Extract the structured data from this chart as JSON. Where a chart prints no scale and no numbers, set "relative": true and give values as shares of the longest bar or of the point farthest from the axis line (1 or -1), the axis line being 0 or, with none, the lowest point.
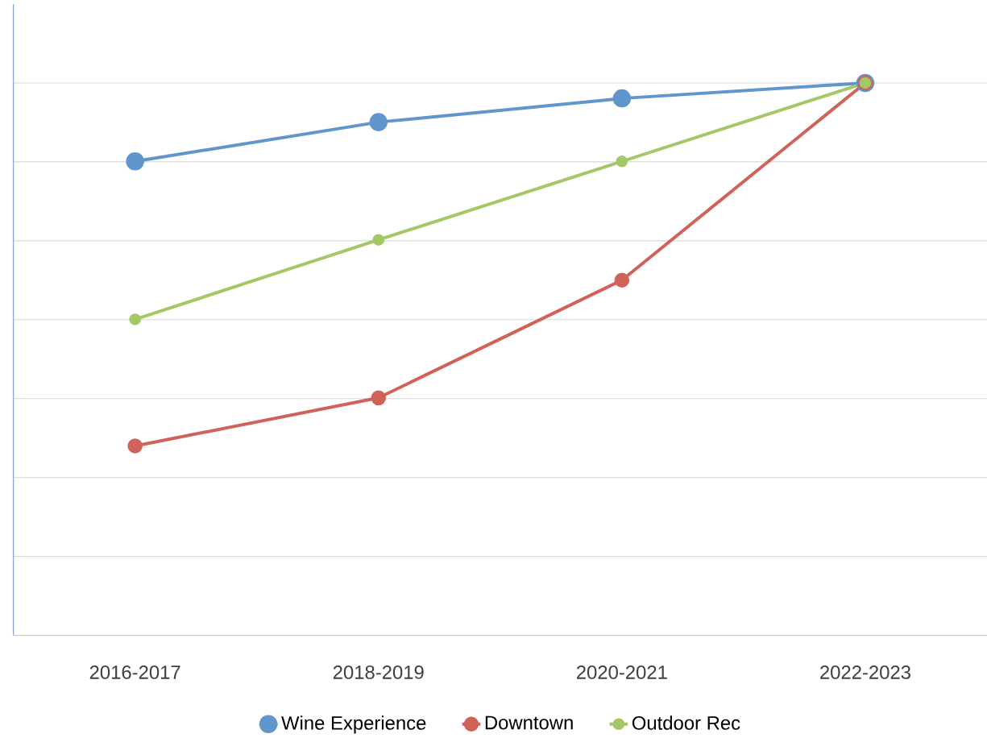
{
  "chart_data": {
    "type": "line",
    "relative": true,
    "categories": [
      "2016-2017",
      "2018-2019",
      "2020-2021",
      "2022-2023"
    ],
    "series": [
      {
        "name": "Wine Experience",
        "color": "#6096cc",
        "values": [
          0.858,
          0.929,
          0.972,
          1
        ]
      },
      {
        "name": "Downtown",
        "color": "#d0625a",
        "values": [
          0.343,
          0.43,
          0.643,
          1
        ]
      },
      {
        "name": "Outdoor Rec",
        "color": "#a5c866",
        "values": [
          0.572,
          0.716,
          0.858,
          1
        ]
      }
    ],
    "marker": "circle",
    "line_style": "solid",
    "grid": "y",
    "legend": "bottom"
  }
}
